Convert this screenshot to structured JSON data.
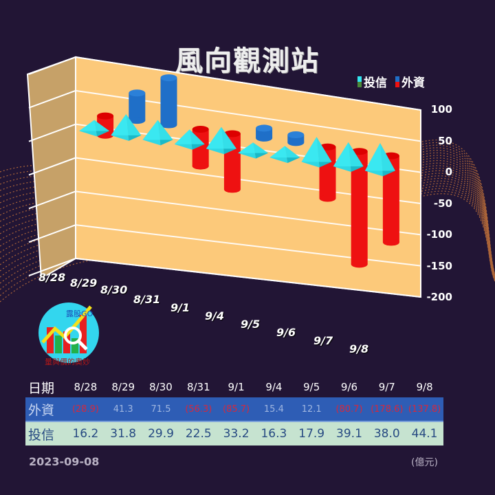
{
  "title": "風向觀測站",
  "legend": [
    {
      "label": "投信",
      "colors": [
        "#33e6f0",
        "#4a8a3a"
      ]
    },
    {
      "label": "外資",
      "colors": [
        "#1f6fc8",
        "#ee1111"
      ]
    }
  ],
  "logo": {
    "brand": "露股GO",
    "tagline": "量與價的奧妙"
  },
  "chart_data": {
    "type": "bar",
    "title": "風向觀測站",
    "categories": [
      "8/28",
      "8/29",
      "8/30",
      "8/31",
      "9/1",
      "9/4",
      "9/5",
      "9/6",
      "9/7",
      "9/8"
    ],
    "series": [
      {
        "name": "外資",
        "values": [
          -28.9,
          41.3,
          71.5,
          -56.3,
          -85.7,
          15.4,
          12.1,
          -80.7,
          -178.6,
          -137.8
        ],
        "style": "cylinder",
        "pos_color": "#1f6fc8",
        "neg_color": "#ee1111"
      },
      {
        "name": "投信",
        "values": [
          16.2,
          31.8,
          29.9,
          22.5,
          33.2,
          16.3,
          17.9,
          39.1,
          38.0,
          44.1
        ],
        "style": "pyramid",
        "pos_color": "#33e6f0",
        "neg_color": "#4a8a3a"
      }
    ],
    "ylim": [
      -200,
      100
    ],
    "yticks": [
      100,
      50,
      0,
      -50,
      -100,
      -150,
      -200
    ],
    "xlabel": "",
    "ylabel": "",
    "grid": true,
    "legend_position": "top-right",
    "unit": "億元"
  },
  "table": {
    "header_label": "日期",
    "dates": [
      "8/28",
      "8/29",
      "8/30",
      "8/31",
      "9/1",
      "9/4",
      "9/5",
      "9/6",
      "9/7",
      "9/8"
    ],
    "foreign_label": "外資",
    "foreign": [
      "(28.9)",
      "41.3",
      "71.5",
      "(56.3)",
      "(85.7)",
      "15.4",
      "12.1",
      "(80.7)",
      "(178.6)",
      "(137.8)"
    ],
    "trust_label": "投信",
    "trust": [
      "16.2",
      "31.8",
      "29.9",
      "22.5",
      "33.2",
      "16.3",
      "17.9",
      "39.1",
      "38.0",
      "44.1"
    ]
  },
  "footer": {
    "date": "2023-09-08",
    "unit": "(億元)"
  }
}
